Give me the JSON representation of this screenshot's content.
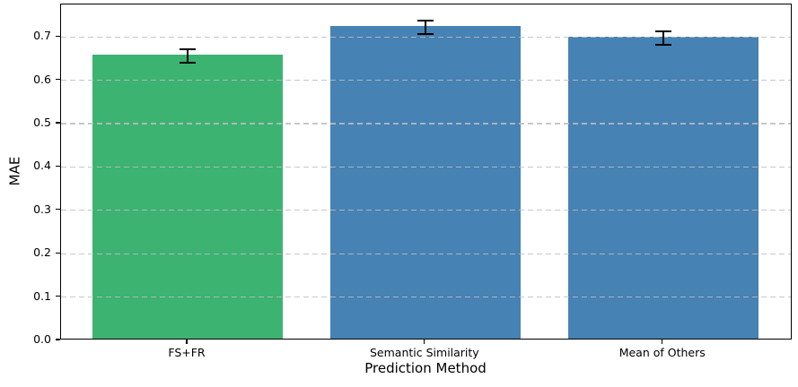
{
  "chart_data": {
    "type": "bar",
    "title": "",
    "xlabel": "Prediction Method",
    "ylabel": "MAE",
    "categories": [
      "FS+FR",
      "Semantic Similarity",
      "Mean of Others"
    ],
    "values": [
      0.656,
      0.722,
      0.697
    ],
    "errors": [
      0.017,
      0.018,
      0.018
    ],
    "bar_colors": [
      "#3cb371",
      "#4682b4",
      "#4682b4"
    ],
    "error_color": "#000000",
    "ylim": [
      0,
      0.775
    ],
    "yticks": [
      "0.0",
      "0.1",
      "0.2",
      "0.3",
      "0.4",
      "0.5",
      "0.6",
      "0.7"
    ],
    "grid": "dashed-horizontal",
    "grid_color": "#bdbdbd",
    "legend": "none",
    "background_color": "#ffffff",
    "spine_color": "#000000"
  }
}
